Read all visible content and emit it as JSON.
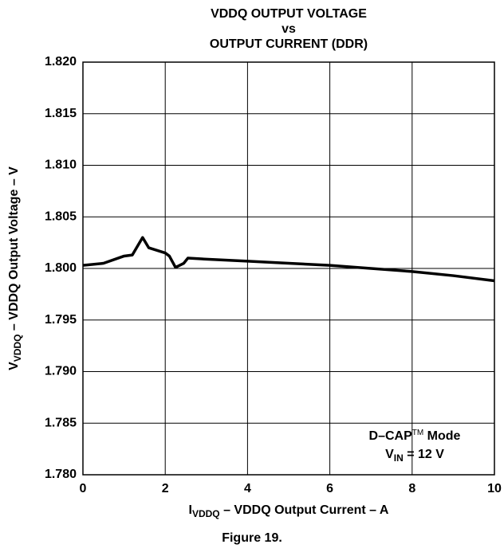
{
  "chart_data": {
    "type": "line",
    "title": [
      "VDDQ OUTPUT VOLTAGE",
      "vs",
      "OUTPUT CURRENT (DDR)"
    ],
    "x_label": {
      "main": "I",
      "sub": "VDDQ",
      "rest": " – VDDQ Output Current – A"
    },
    "y_label": {
      "main": "V",
      "sub": "VDDQ",
      "rest": " – VDDQ Output Voltage – V"
    },
    "annotation": {
      "line1": {
        "main": "D–CAP",
        "sup": "TM",
        "rest": " Mode"
      },
      "line2": {
        "main": "V",
        "sub": "IN",
        "rest": " = 12 V"
      }
    },
    "caption": "Figure 19.",
    "x": [
      0,
      0.5,
      1,
      1.2,
      1.45,
      1.6,
      2.0,
      2.1,
      2.25,
      2.45,
      2.55,
      3,
      4,
      5,
      6,
      7,
      8,
      9,
      10
    ],
    "series": [
      {
        "name": "VDDQ",
        "color": "#000000",
        "values": [
          1.8003,
          1.8005,
          1.8012,
          1.8013,
          1.803,
          1.802,
          1.8015,
          1.8012,
          1.8001,
          1.8005,
          1.801,
          1.8009,
          1.8007,
          1.8005,
          1.8003,
          1.8,
          1.7997,
          1.7993,
          1.7988
        ]
      }
    ],
    "xlim": [
      0,
      10
    ],
    "xticks": [
      0,
      2,
      4,
      6,
      8,
      10
    ],
    "ylim": [
      1.78,
      1.82
    ],
    "yticks": [
      {
        "value": 1.78,
        "label": "1.780"
      },
      {
        "value": 1.785,
        "label": "1.785"
      },
      {
        "value": 1.79,
        "label": "1.790"
      },
      {
        "value": 1.795,
        "label": "1.795"
      },
      {
        "value": 1.8,
        "label": "1.800"
      },
      {
        "value": 1.805,
        "label": "1.805"
      },
      {
        "value": 1.81,
        "label": "1.810"
      },
      {
        "value": 1.815,
        "label": "1.815"
      },
      {
        "value": 1.82,
        "label": "1.820"
      }
    ],
    "grid": true
  }
}
